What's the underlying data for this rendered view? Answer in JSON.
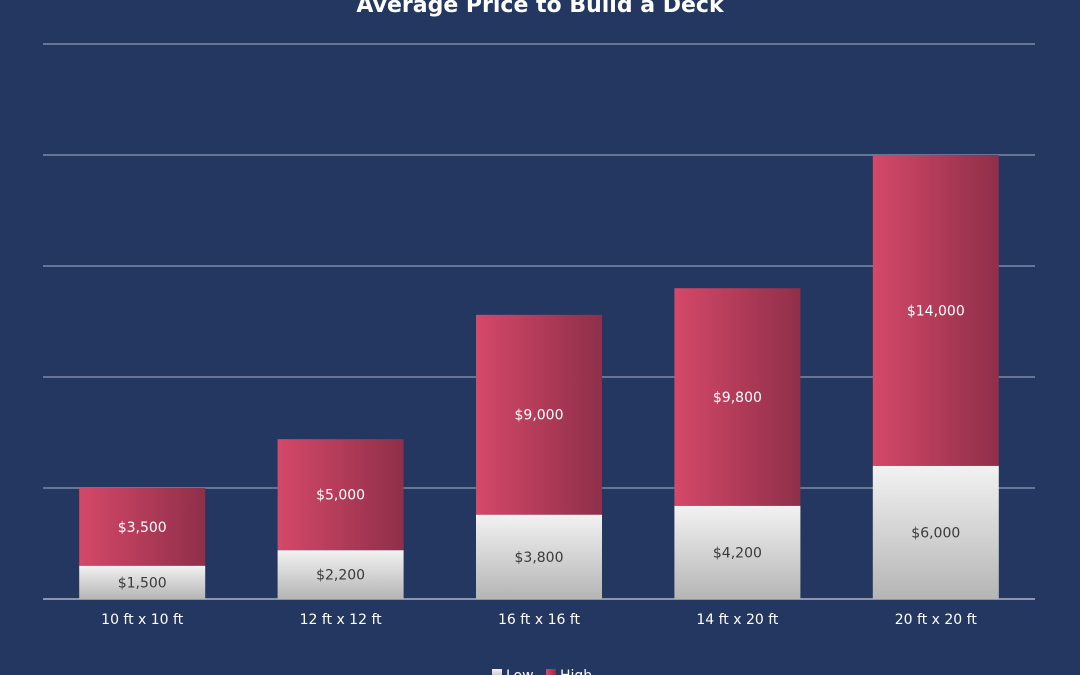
{
  "chart_data": {
    "type": "bar",
    "stacked": true,
    "title": "Average Price to Build a Deck",
    "categories": [
      "10 ft x 10 ft",
      "12 ft x 12 ft",
      "16 ft x 16 ft",
      "14 ft x 20 ft",
      "20 ft x 20 ft"
    ],
    "series": [
      {
        "name": "Low",
        "values": [
          1500,
          2200,
          3800,
          4200,
          6000
        ],
        "labels": [
          "$1,500",
          "$2,200",
          "$3,800",
          "$4,200",
          "$6,000"
        ],
        "color": "#e2e2e2"
      },
      {
        "name": "High",
        "values": [
          3500,
          5000,
          9000,
          9800,
          14000
        ],
        "labels": [
          "$3,500",
          "$5,000",
          "$9,000",
          "$9,800",
          "$14,000"
        ],
        "color": "#c84262"
      }
    ],
    "ylim": [
      0,
      25000
    ],
    "grid": true,
    "legend_position": "bottom",
    "background": "#233761",
    "gridline_color": "#a9b3c9"
  }
}
